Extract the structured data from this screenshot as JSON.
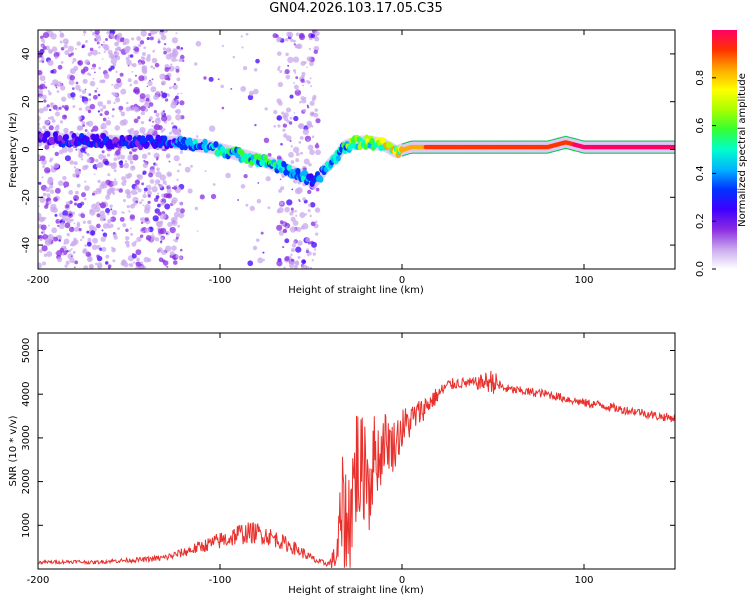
{
  "title": "GN04.2026.103.17.05.C35",
  "chart_data": [
    {
      "type": "heatmap",
      "name": "spectrogram",
      "xlabel": "Height of straight line (km)",
      "ylabel": "Frequency (Hz)",
      "xlim": [
        -200,
        150
      ],
      "ylim": [
        -50,
        50
      ],
      "xticks": [
        -200,
        -100,
        0,
        100
      ],
      "yticks": [
        -40,
        -20,
        0,
        20,
        40
      ],
      "grid": false,
      "colorbar": {
        "label": "Normalized spectral amplitude",
        "range": [
          0,
          1
        ],
        "ticks": [
          "0.0",
          "0.2",
          "0.4",
          "0.6",
          "0.8"
        ],
        "colormap": [
          "#ffffff",
          "#c9a8ee",
          "#8a2be2",
          "#3f00ff",
          "#0033ff",
          "#00b4ff",
          "#00ffcc",
          "#33ff33",
          "#aaff00",
          "#ffff00",
          "#ffaa00",
          "#ff3300",
          "#ff0066"
        ]
      },
      "ridge": [
        {
          "x": -200,
          "y": 5,
          "amp": 0.25
        },
        {
          "x": -185,
          "y": 4,
          "amp": 0.28
        },
        {
          "x": -170,
          "y": 4,
          "amp": 0.3
        },
        {
          "x": -155,
          "y": 3,
          "amp": 0.3
        },
        {
          "x": -140,
          "y": 3,
          "amp": 0.32
        },
        {
          "x": -125,
          "y": 3,
          "amp": 0.38
        },
        {
          "x": -115,
          "y": 2,
          "amp": 0.45
        },
        {
          "x": -105,
          "y": 1,
          "amp": 0.5
        },
        {
          "x": -95,
          "y": -1,
          "amp": 0.55
        },
        {
          "x": -85,
          "y": -3,
          "amp": 0.55
        },
        {
          "x": -75,
          "y": -5,
          "amp": 0.55
        },
        {
          "x": -65,
          "y": -8,
          "amp": 0.5
        },
        {
          "x": -55,
          "y": -11,
          "amp": 0.45
        },
        {
          "x": -48,
          "y": -14,
          "amp": 0.4
        },
        {
          "x": -42,
          "y": -8,
          "amp": 0.45
        },
        {
          "x": -37,
          "y": -4,
          "amp": 0.5
        },
        {
          "x": -32,
          "y": 1,
          "amp": 0.55
        },
        {
          "x": -25,
          "y": 3,
          "amp": 0.65
        },
        {
          "x": -18,
          "y": 3,
          "amp": 0.72
        },
        {
          "x": -10,
          "y": 2,
          "amp": 0.78
        },
        {
          "x": -3,
          "y": -1,
          "amp": 0.8
        },
        {
          "x": 5,
          "y": 1,
          "amp": 0.85
        },
        {
          "x": 20,
          "y": 1,
          "amp": 0.9
        },
        {
          "x": 40,
          "y": 1,
          "amp": 0.92
        },
        {
          "x": 60,
          "y": 1,
          "amp": 0.95
        },
        {
          "x": 80,
          "y": 1,
          "amp": 0.95
        },
        {
          "x": 90,
          "y": 3,
          "amp": 0.95
        },
        {
          "x": 100,
          "y": 1,
          "amp": 0.97
        },
        {
          "x": 120,
          "y": 1,
          "amp": 0.98
        },
        {
          "x": 150,
          "y": 1,
          "amp": 1.0
        }
      ]
    },
    {
      "type": "line",
      "name": "snr",
      "xlabel": "Height of straight line (km)",
      "ylabel": "SNR (10 * v/v)",
      "xlim": [
        -200,
        150
      ],
      "ylim": [
        0,
        5400
      ],
      "xticks": [
        -200,
        -100,
        0,
        100
      ],
      "yticks": [
        1000,
        2000,
        3000,
        4000,
        5000
      ],
      "grid": false,
      "series": [
        {
          "name": "SNR",
          "color": "#e8312d",
          "x": [
            -200,
            -190,
            -180,
            -170,
            -160,
            -150,
            -140,
            -130,
            -125,
            -120,
            -115,
            -110,
            -105,
            -100,
            -95,
            -90,
            -85,
            -80,
            -75,
            -70,
            -65,
            -60,
            -55,
            -50,
            -45,
            -40,
            -36,
            -33,
            -30,
            -27,
            -25,
            -22,
            -20,
            -18,
            -15,
            -12,
            -10,
            -5,
            0,
            5,
            10,
            15,
            20,
            25,
            30,
            40,
            50,
            55,
            60,
            70,
            80,
            90,
            100,
            110,
            120,
            130,
            140,
            150
          ],
          "y": [
            150,
            160,
            170,
            150,
            180,
            200,
            220,
            260,
            320,
            380,
            450,
            520,
            580,
            650,
            700,
            800,
            820,
            830,
            780,
            700,
            600,
            500,
            380,
            250,
            150,
            120,
            300,
            1200,
            800,
            1800,
            2400,
            2100,
            2600,
            1900,
            2700,
            2500,
            3000,
            2800,
            3200,
            3400,
            3600,
            3800,
            4000,
            4200,
            4250,
            4250,
            4300,
            4150,
            4100,
            4050,
            4000,
            3900,
            3800,
            3750,
            3650,
            3600,
            3500,
            3450
          ],
          "noise_amp": [
            40,
            40,
            40,
            40,
            45,
            50,
            60,
            80,
            90,
            110,
            130,
            150,
            170,
            200,
            220,
            250,
            250,
            250,
            230,
            200,
            180,
            160,
            130,
            100,
            80,
            60,
            400,
            1400,
            1500,
            1500,
            1500,
            1400,
            1300,
            1200,
            900,
            800,
            700,
            600,
            500,
            400,
            300,
            250,
            180,
            150,
            130,
            130,
            300,
            120,
            100,
            100,
            100,
            100,
            100,
            100,
            100,
            100,
            100,
            100
          ]
        }
      ]
    }
  ]
}
